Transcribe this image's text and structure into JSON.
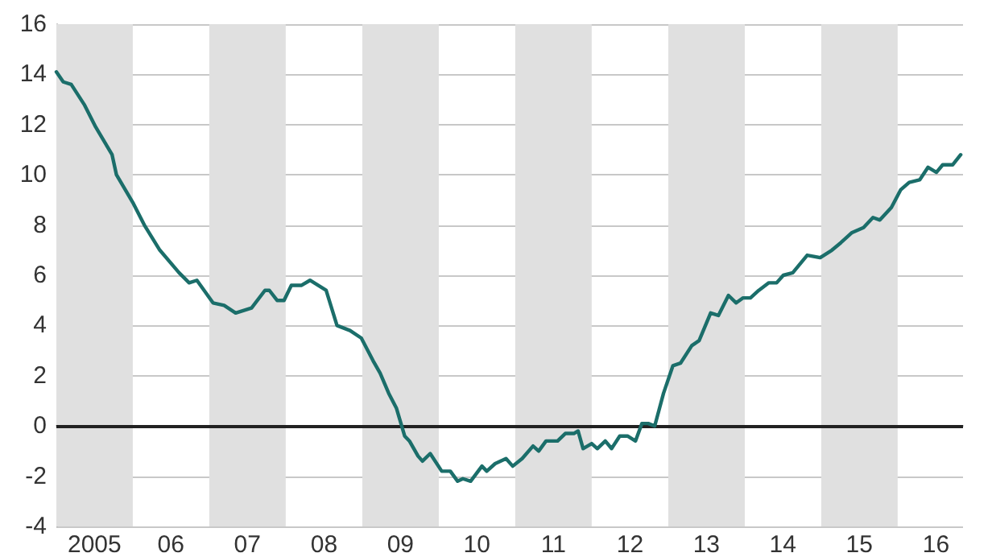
{
  "chart_data": {
    "type": "line",
    "xlim": [
      "2005-01-01",
      "2016-11-08"
    ],
    "ylim": [
      -4,
      16
    ],
    "xticks": [
      {
        "value": "2005-07-02",
        "label": "2005"
      },
      {
        "value": "2006-07-02",
        "label": "06"
      },
      {
        "value": "2007-07-02",
        "label": "07"
      },
      {
        "value": "2008-07-02",
        "label": "08"
      },
      {
        "value": "2009-07-02",
        "label": "09"
      },
      {
        "value": "2010-07-02",
        "label": "10"
      },
      {
        "value": "2011-07-02",
        "label": "11"
      },
      {
        "value": "2012-07-02",
        "label": "12"
      },
      {
        "value": "2013-07-02",
        "label": "13"
      },
      {
        "value": "2014-07-02",
        "label": "14"
      },
      {
        "value": "2015-07-02",
        "label": "15"
      },
      {
        "value": "2016-07-02",
        "label": "16"
      }
    ],
    "yticks": [
      -4,
      -2,
      0,
      2,
      4,
      6,
      8,
      10,
      12,
      14,
      16
    ],
    "grid": "y",
    "marker": "none",
    "line_style": "solid",
    "x": [
      "2005-01-01",
      "2005-02-03",
      "2005-03-13",
      "2005-05-14",
      "2005-07-08",
      "2005-09-24",
      "2005-10-15",
      "2006-01-01",
      "2006-02-25",
      "2006-05-10",
      "2006-08-10",
      "2006-09-27",
      "2006-11-03",
      "2007-01-19",
      "2007-03-13",
      "2007-05-07",
      "2007-07-22",
      "2007-09-24",
      "2007-10-15",
      "2007-11-21",
      "2007-12-24",
      "2008-01-28",
      "2008-03-17",
      "2008-04-26",
      "2008-07-12",
      "2008-09-02",
      "2008-11-03",
      "2008-12-27",
      "2009-02-21",
      "2009-03-27",
      "2009-05-07",
      "2009-06-13",
      "2009-07-22",
      "2009-08-14",
      "2009-09-24",
      "2009-10-15",
      "2009-11-21",
      "2010-01-15",
      "2010-02-25",
      "2010-04-01",
      "2010-04-26",
      "2010-06-02",
      "2010-07-26",
      "2010-08-18",
      "2010-09-27",
      "2010-11-18",
      "2010-12-20",
      "2011-02-03",
      "2011-03-27",
      "2011-04-23",
      "2011-05-28",
      "2011-07-22",
      "2011-08-28",
      "2011-10-08",
      "2011-10-28",
      "2011-11-21",
      "2012-01-01",
      "2012-01-28",
      "2012-03-06",
      "2012-04-05",
      "2012-05-14",
      "2012-06-20",
      "2012-07-28",
      "2012-08-28",
      "2012-09-27",
      "2012-10-28",
      "2012-12-09",
      "2013-01-23",
      "2013-02-28",
      "2013-04-23",
      "2013-05-28",
      "2013-07-22",
      "2013-08-28",
      "2013-10-15",
      "2013-11-21",
      "2013-12-24",
      "2014-01-28",
      "2014-03-09",
      "2014-04-26",
      "2014-06-02",
      "2014-07-04",
      "2014-08-18",
      "2014-10-26",
      "2014-12-27",
      "2015-02-21",
      "2015-04-05",
      "2015-05-28",
      "2015-07-22",
      "2015-09-05",
      "2015-10-08",
      "2015-12-02",
      "2016-01-15",
      "2016-02-25",
      "2016-04-15",
      "2016-05-25",
      "2016-07-04",
      "2016-08-03",
      "2016-09-20",
      "2016-10-28"
    ],
    "series": [
      {
        "color": "#1b6e6a",
        "values": [
          14.1,
          13.7,
          13.6,
          12.8,
          11.9,
          10.8,
          10.0,
          8.9,
          8.0,
          7.0,
          6.1,
          5.7,
          5.8,
          4.9,
          4.8,
          4.5,
          4.7,
          5.4,
          5.4,
          5.0,
          5.0,
          5.6,
          5.6,
          5.8,
          5.4,
          4.0,
          3.8,
          3.5,
          2.6,
          2.1,
          1.3,
          0.7,
          -0.4,
          -0.6,
          -1.2,
          -1.4,
          -1.1,
          -1.8,
          -1.8,
          -2.2,
          -2.1,
          -2.2,
          -1.6,
          -1.8,
          -1.5,
          -1.3,
          -1.6,
          -1.3,
          -0.8,
          -1.0,
          -0.6,
          -0.6,
          -0.3,
          -0.3,
          -0.2,
          -0.9,
          -0.7,
          -0.9,
          -0.6,
          -0.9,
          -0.4,
          -0.4,
          -0.6,
          0.1,
          0.1,
          0.0,
          1.3,
          2.4,
          2.5,
          3.2,
          3.4,
          4.5,
          4.4,
          5.2,
          4.9,
          5.1,
          5.1,
          5.4,
          5.7,
          5.7,
          6.0,
          6.1,
          6.8,
          6.7,
          7.0,
          7.3,
          7.7,
          7.9,
          8.3,
          8.2,
          8.7,
          9.4,
          9.7,
          9.8,
          10.3,
          10.1,
          10.4,
          10.4,
          10.8
        ]
      }
    ],
    "ref_lines": [
      {
        "axis": "y",
        "value": 0,
        "color": "#222222"
      }
    ],
    "bands": [
      {
        "axis": "x",
        "from": "2005-01-01",
        "to": "2006-01-01",
        "color": "#e0e0e0"
      },
      {
        "axis": "x",
        "from": "2007-01-01",
        "to": "2008-01-01",
        "color": "#e0e0e0"
      },
      {
        "axis": "x",
        "from": "2009-01-01",
        "to": "2010-01-01",
        "color": "#e0e0e0"
      },
      {
        "axis": "x",
        "from": "2011-01-01",
        "to": "2012-01-01",
        "color": "#e0e0e0"
      },
      {
        "axis": "x",
        "from": "2013-01-01",
        "to": "2014-01-01",
        "color": "#e0e0e0"
      },
      {
        "axis": "x",
        "from": "2015-01-01",
        "to": "2016-01-01",
        "color": "#e0e0e0"
      }
    ]
  }
}
